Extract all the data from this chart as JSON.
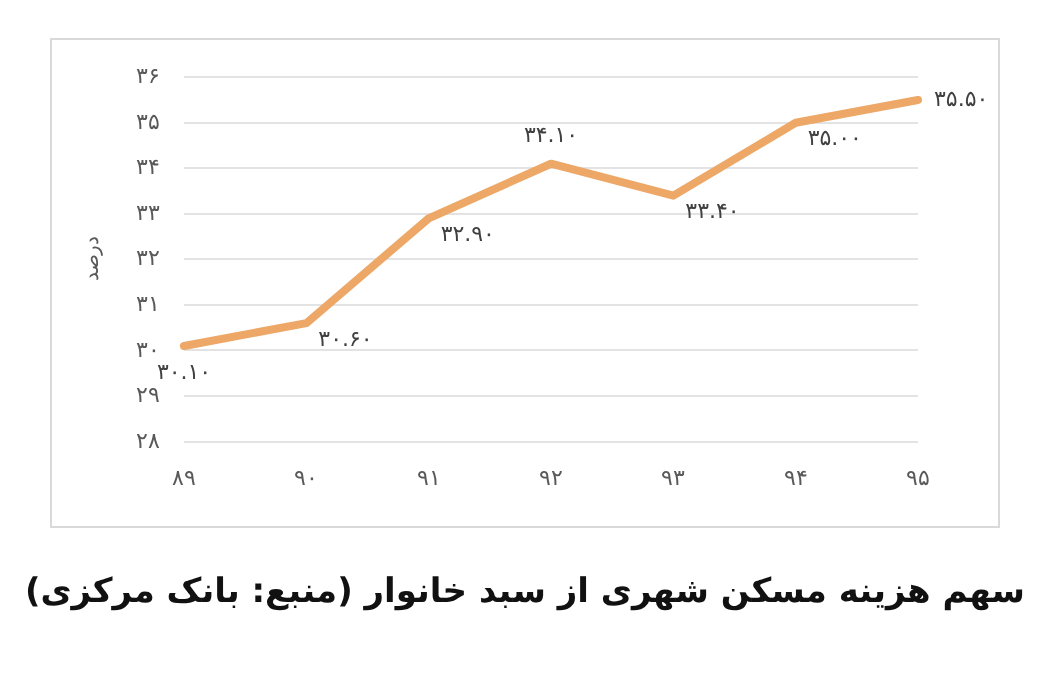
{
  "chart_data": {
    "type": "line",
    "ylabel": "درصد",
    "categories": [
      "۸۹",
      "۹۰",
      "۹۱",
      "۹۲",
      "۹۳",
      "۹۴",
      "۹۵"
    ],
    "series": [
      {
        "color": "#eda766",
        "values": [
          30.1,
          30.6,
          32.9,
          34.1,
          33.4,
          35.0,
          35.5
        ],
        "value_labels": [
          "۳۰.۱۰",
          "۳۰.۶۰",
          "۳۲.۹۰",
          "۳۴.۱۰",
          "۳۳.۴۰",
          "۳۵.۰۰",
          "۳۵.۵۰"
        ]
      }
    ],
    "ylim": [
      28,
      36
    ],
    "yticks": [
      {
        "value": 28,
        "label": "۲۸"
      },
      {
        "value": 29,
        "label": "۲۹"
      },
      {
        "value": 30,
        "label": "۳۰"
      },
      {
        "value": 31,
        "label": "۳۱"
      },
      {
        "value": 32,
        "label": "۳۲"
      },
      {
        "value": 33,
        "label": "۳۳"
      },
      {
        "value": 34,
        "label": "۳۴"
      },
      {
        "value": 35,
        "label": "۳۵"
      },
      {
        "value": 36,
        "label": "۳۶"
      }
    ],
    "grid": "y",
    "legend": false,
    "marker": "none",
    "line_style": "solid",
    "annotations": [
      "سهم هزینه مسکن شهری از سبد خانوار (منبع: بانک مرکزی)"
    ]
  }
}
